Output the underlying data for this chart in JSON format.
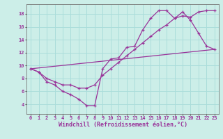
{
  "xlabel": "Windchill (Refroidissement éolien,°C)",
  "bg_color": "#cceee8",
  "grid_color": "#aaddda",
  "line_color": "#993399",
  "xlim": [
    -0.5,
    23.5
  ],
  "ylim": [
    2.5,
    19.5
  ],
  "yticks": [
    4,
    6,
    8,
    10,
    12,
    14,
    16,
    18
  ],
  "xticks": [
    0,
    1,
    2,
    3,
    4,
    5,
    6,
    7,
    8,
    9,
    10,
    11,
    12,
    13,
    14,
    15,
    16,
    17,
    18,
    19,
    20,
    21,
    22,
    23
  ],
  "line1_x": [
    0,
    1,
    2,
    3,
    4,
    5,
    6,
    7,
    8,
    9,
    10,
    11,
    12,
    13,
    14,
    15,
    16,
    17,
    18,
    19,
    20,
    21,
    22,
    23
  ],
  "line1_y": [
    9.5,
    9.0,
    7.5,
    7.0,
    6.0,
    5.5,
    4.8,
    3.8,
    3.8,
    9.5,
    11.0,
    11.2,
    12.8,
    13.0,
    15.5,
    17.3,
    18.5,
    18.5,
    17.3,
    18.3,
    17.0,
    15.0,
    13.0,
    12.5
  ],
  "line2_x": [
    0,
    1,
    2,
    3,
    4,
    5,
    6,
    7,
    8,
    9,
    10,
    11,
    12,
    13,
    14,
    15,
    16,
    17,
    18,
    19,
    20,
    21,
    22,
    23
  ],
  "line2_y": [
    9.5,
    9.0,
    8.0,
    7.5,
    7.0,
    7.0,
    6.5,
    6.5,
    7.0,
    8.5,
    9.5,
    10.5,
    11.5,
    12.5,
    13.5,
    14.5,
    15.5,
    16.3,
    17.3,
    17.7,
    17.5,
    18.3,
    18.5,
    18.5
  ],
  "line3_x": [
    0,
    23
  ],
  "line3_y": [
    9.5,
    12.5
  ],
  "font_family": "monospace",
  "tick_fontsize": 5.0,
  "xlabel_fontsize": 6.0
}
